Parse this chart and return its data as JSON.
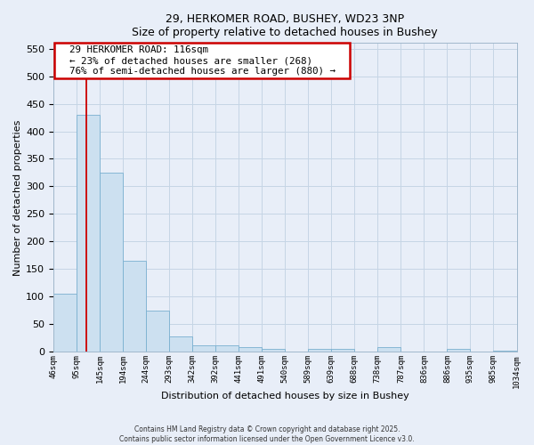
{
  "title_line1": "29, HERKOMER ROAD, BUSHEY, WD23 3NP",
  "title_line2": "Size of property relative to detached houses in Bushey",
  "bar_values": [
    105,
    430,
    325,
    165,
    75,
    28,
    12,
    12,
    8,
    5,
    0,
    5,
    5,
    0,
    8,
    0,
    0,
    5,
    0,
    3
  ],
  "bar_labels": [
    "46sqm",
    "95sqm",
    "145sqm",
    "194sqm",
    "244sqm",
    "293sqm",
    "342sqm",
    "392sqm",
    "441sqm",
    "491sqm",
    "540sqm",
    "589sqm",
    "639sqm",
    "688sqm",
    "738sqm",
    "787sqm",
    "836sqm",
    "886sqm",
    "935sqm",
    "985sqm",
    "1034sqm"
  ],
  "bar_color": "#cce0f0",
  "bar_edge_color": "#7ab0d0",
  "annotation_title": "29 HERKOMER ROAD: 116sqm",
  "annotation_line1": "← 23% of detached houses are smaller (268)",
  "annotation_line2": "76% of semi-detached houses are larger (880) →",
  "annotation_box_color": "#ffffff",
  "annotation_box_edge": "#cc0000",
  "vline_x": 1.42,
  "vline_color": "#cc0000",
  "xlabel": "Distribution of detached houses by size in Bushey",
  "ylabel": "Number of detached properties",
  "ylim": [
    0,
    560
  ],
  "yticks": [
    0,
    50,
    100,
    150,
    200,
    250,
    300,
    350,
    400,
    450,
    500,
    550
  ],
  "grid_color": "#c5d5e5",
  "background_color": "#e8eef8",
  "footer_line1": "Contains HM Land Registry data © Crown copyright and database right 2025.",
  "footer_line2": "Contains public sector information licensed under the Open Government Licence v3.0."
}
